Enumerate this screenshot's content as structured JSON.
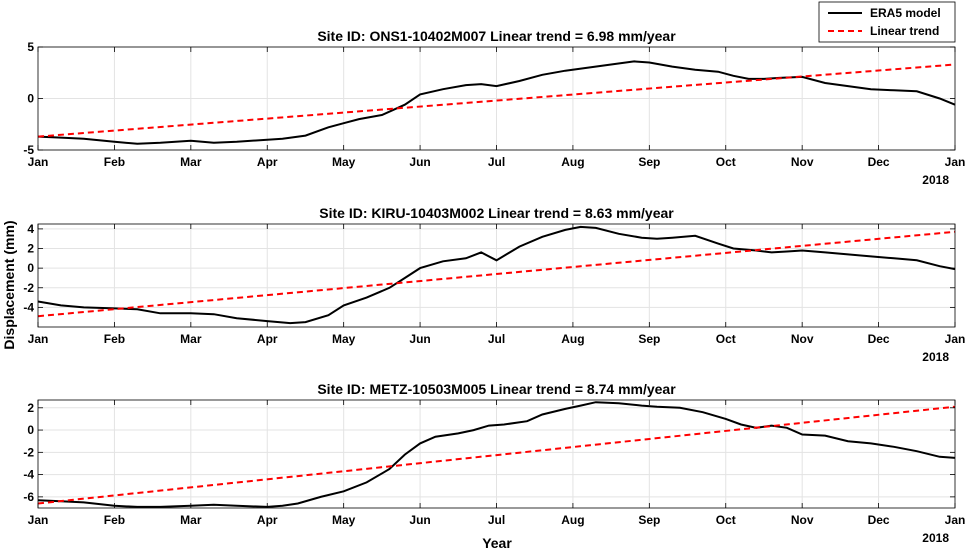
{
  "figure": {
    "ylabel": "Displacement (mm)",
    "xlabel": "Year",
    "year_label": "2018"
  },
  "legend": {
    "placement": "top-right",
    "items": [
      {
        "label": "ERA5 model",
        "color": "#000000",
        "style": "solid"
      },
      {
        "label": "Linear trend",
        "color": "#ff0000",
        "style": "dashed"
      }
    ]
  },
  "x_ticks": [
    "Jan",
    "Feb",
    "Mar",
    "Apr",
    "May",
    "Jun",
    "Jul",
    "Aug",
    "Sep",
    "Oct",
    "Nov",
    "Dec",
    "Jan"
  ],
  "chart_data": [
    {
      "type": "line",
      "title": "Site ID: ONS1-10402M007  Linear trend = 6.98 mm/year",
      "x_unit": "months since 2018-01-01",
      "ylim": [
        -5,
        5
      ],
      "yticks": [
        -5,
        0,
        5
      ],
      "grid": true,
      "series": [
        {
          "name": "ERA5 model",
          "color": "#000000",
          "x": [
            0,
            0.3,
            0.6,
            1.0,
            1.3,
            1.6,
            2.0,
            2.3,
            2.6,
            3.0,
            3.2,
            3.5,
            3.8,
            4.0,
            4.2,
            4.5,
            4.8,
            5.0,
            5.3,
            5.6,
            5.8,
            6.0,
            6.3,
            6.6,
            6.9,
            7.2,
            7.5,
            7.8,
            8.0,
            8.3,
            8.6,
            8.9,
            9.1,
            9.3,
            9.5,
            9.7,
            10.0,
            10.3,
            10.6,
            10.9,
            11.2,
            11.5,
            11.8,
            12.0
          ],
          "y": [
            -3.7,
            -3.8,
            -3.9,
            -4.2,
            -4.4,
            -4.3,
            -4.1,
            -4.3,
            -4.2,
            -4.0,
            -3.9,
            -3.6,
            -2.8,
            -2.4,
            -2.0,
            -1.6,
            -0.6,
            0.4,
            0.9,
            1.3,
            1.4,
            1.2,
            1.7,
            2.3,
            2.7,
            3.0,
            3.3,
            3.6,
            3.5,
            3.1,
            2.8,
            2.6,
            2.2,
            1.9,
            1.9,
            2.0,
            2.1,
            1.5,
            1.2,
            0.9,
            0.8,
            0.7,
            0.0,
            -0.6
          ]
        },
        {
          "name": "Linear trend",
          "color": "#ff0000",
          "dashed": true,
          "x": [
            0,
            12
          ],
          "y": [
            -3.7,
            3.3
          ]
        }
      ]
    },
    {
      "type": "line",
      "title": "Site ID: KIRU-10403M002  Linear trend = 8.63 mm/year",
      "x_unit": "months since 2018-01-01",
      "ylim": [
        -6,
        4.5
      ],
      "yticks": [
        -4,
        -2,
        0,
        2,
        4
      ],
      "grid": true,
      "series": [
        {
          "name": "ERA5 model",
          "color": "#000000",
          "x": [
            0,
            0.3,
            0.6,
            1.0,
            1.3,
            1.6,
            2.0,
            2.3,
            2.6,
            3.0,
            3.3,
            3.5,
            3.8,
            4.0,
            4.3,
            4.6,
            4.8,
            5.0,
            5.3,
            5.6,
            5.8,
            6.0,
            6.3,
            6.6,
            6.9,
            7.1,
            7.3,
            7.6,
            7.9,
            8.1,
            8.3,
            8.6,
            8.9,
            9.1,
            9.4,
            9.6,
            9.8,
            10.0,
            10.3,
            10.6,
            10.9,
            11.2,
            11.5,
            11.8,
            12.0
          ],
          "y": [
            -3.4,
            -3.8,
            -4.0,
            -4.1,
            -4.2,
            -4.6,
            -4.6,
            -4.7,
            -5.1,
            -5.4,
            -5.6,
            -5.5,
            -4.8,
            -3.8,
            -3.0,
            -2.0,
            -1.0,
            0.0,
            0.7,
            1.0,
            1.6,
            0.8,
            2.2,
            3.2,
            3.9,
            4.2,
            4.1,
            3.5,
            3.1,
            3.0,
            3.1,
            3.3,
            2.5,
            2.0,
            1.8,
            1.6,
            1.7,
            1.8,
            1.6,
            1.4,
            1.2,
            1.0,
            0.8,
            0.2,
            -0.1
          ]
        },
        {
          "name": "Linear trend",
          "color": "#ff0000",
          "dashed": true,
          "x": [
            0,
            12
          ],
          "y": [
            -4.9,
            3.7
          ]
        }
      ]
    },
    {
      "type": "line",
      "title": "Site ID: METZ-10503M005  Linear trend = 8.74 mm/year",
      "x_unit": "months since 2018-01-01",
      "ylim": [
        -7,
        2.7
      ],
      "yticks": [
        -6,
        -4,
        -2,
        0,
        2
      ],
      "grid": true,
      "series": [
        {
          "name": "ERA5 model",
          "color": "#000000",
          "x": [
            0,
            0.3,
            0.6,
            1.0,
            1.3,
            1.6,
            2.0,
            2.3,
            2.6,
            3.0,
            3.2,
            3.4,
            3.7,
            4.0,
            4.3,
            4.6,
            4.8,
            5.0,
            5.2,
            5.5,
            5.7,
            5.9,
            6.1,
            6.4,
            6.6,
            6.9,
            7.1,
            7.3,
            7.6,
            7.9,
            8.1,
            8.4,
            8.7,
            9.0,
            9.2,
            9.4,
            9.6,
            9.8,
            10.0,
            10.3,
            10.6,
            10.9,
            11.2,
            11.5,
            11.8,
            12.0
          ],
          "y": [
            -6.3,
            -6.4,
            -6.5,
            -6.8,
            -6.9,
            -6.9,
            -6.8,
            -6.7,
            -6.8,
            -6.9,
            -6.8,
            -6.6,
            -6.0,
            -5.5,
            -4.7,
            -3.5,
            -2.2,
            -1.2,
            -0.6,
            -0.3,
            0.0,
            0.4,
            0.5,
            0.8,
            1.4,
            1.9,
            2.2,
            2.5,
            2.4,
            2.2,
            2.1,
            2.0,
            1.6,
            1.0,
            0.5,
            0.2,
            0.4,
            0.2,
            -0.4,
            -0.5,
            -1.0,
            -1.2,
            -1.5,
            -1.9,
            -2.4,
            -2.5
          ]
        },
        {
          "name": "Linear trend",
          "color": "#ff0000",
          "dashed": true,
          "x": [
            0,
            12
          ],
          "y": [
            -6.6,
            2.1
          ]
        }
      ]
    }
  ]
}
